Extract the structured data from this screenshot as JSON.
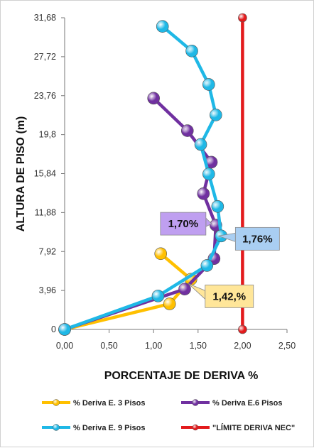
{
  "chart_data": {
    "type": "scatter",
    "xlabel": "PORCENTAJE DE DERIVA %",
    "ylabel": "ALTURA DE PISO (m)",
    "xlim": [
      0,
      2.5
    ],
    "ylim": [
      0,
      31.68
    ],
    "x_ticks": [
      "0,00",
      "0,50",
      "1,00",
      "1,50",
      "2,00",
      "2,50"
    ],
    "y_ticks": [
      "0",
      "3,96",
      "7,92",
      "11,88",
      "15,84",
      "19,8",
      "23,76",
      "27,72",
      "31,68"
    ],
    "grid": false,
    "legend_position": "bottom",
    "series": [
      {
        "name": "% Deriva E. 3 Pisos",
        "color": "#FFC000",
        "points": [
          [
            0.0,
            0.0
          ],
          [
            1.18,
            2.6
          ],
          [
            1.42,
            5.1
          ],
          [
            1.08,
            7.7
          ]
        ]
      },
      {
        "name": "% Deriva E.6 Pisos",
        "color": "#7030A0",
        "points": [
          [
            0.0,
            0.0
          ],
          [
            1.35,
            4.1
          ],
          [
            1.68,
            7.2
          ],
          [
            1.7,
            10.6
          ],
          [
            1.56,
            13.8
          ],
          [
            1.65,
            17.0
          ],
          [
            1.38,
            20.2
          ],
          [
            1.0,
            23.5
          ]
        ]
      },
      {
        "name": "% Deriva  E. 9 Pisos",
        "color": "#1FB8E6",
        "points": [
          [
            0.0,
            0.0
          ],
          [
            1.05,
            3.4
          ],
          [
            1.6,
            6.5
          ],
          [
            1.76,
            9.5
          ],
          [
            1.72,
            12.5
          ],
          [
            1.62,
            15.8
          ],
          [
            1.53,
            18.8
          ],
          [
            1.7,
            21.8
          ],
          [
            1.62,
            24.9
          ],
          [
            1.43,
            28.3
          ],
          [
            1.1,
            30.8
          ]
        ]
      },
      {
        "name": "\"LÍMITE DERIVA NEC\"",
        "color": "#E31A1C",
        "points": [
          [
            2.0,
            0.0
          ],
          [
            2.0,
            31.68
          ]
        ]
      }
    ],
    "annotations": [
      {
        "text": "1,70%",
        "x": 1.7,
        "y": 10.6,
        "bg": "#BF9FF0"
      },
      {
        "text": "1,76%",
        "x": 1.76,
        "y": 9.5,
        "bg": "#A9CEF2"
      },
      {
        "text": "1,42,%",
        "x": 1.42,
        "y": 5.1,
        "bg": "#FFE699"
      }
    ]
  }
}
